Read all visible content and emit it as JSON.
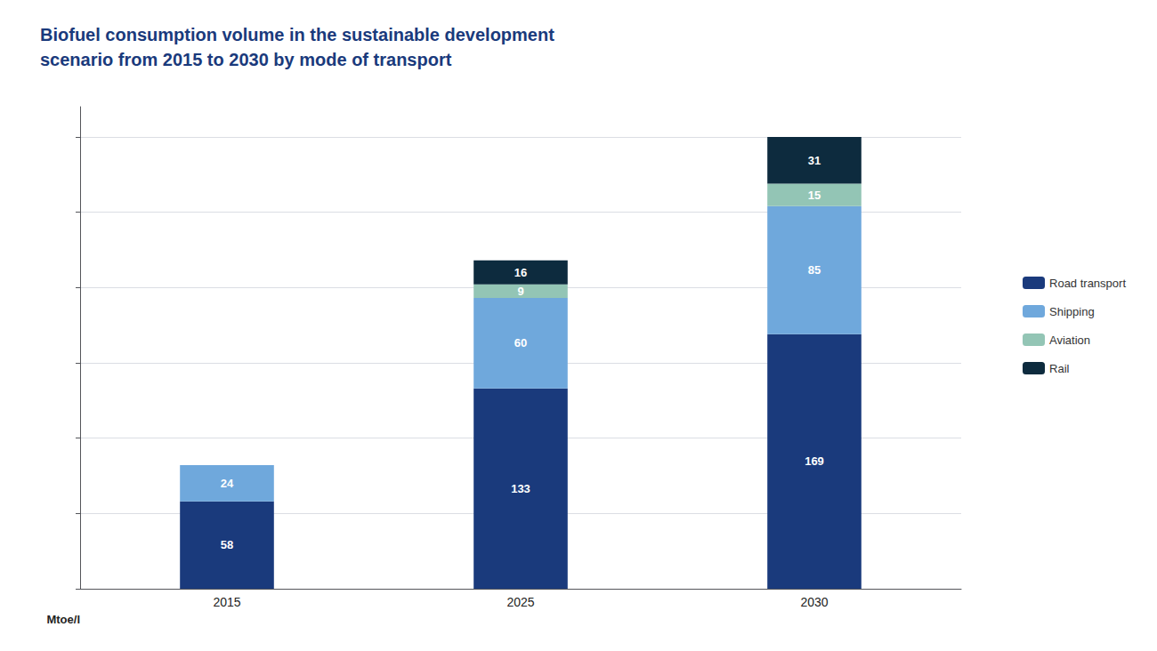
{
  "chart_data": {
    "type": "bar",
    "title": "Biofuel consumption volume in the sustainable development\nscenario from 2015 to 2030 by mode of transport",
    "categories": [
      "2015",
      "2025",
      "2030"
    ],
    "series": [
      {
        "name": "Road transport",
        "color": "#1a3a7c",
        "values": [
          58,
          133,
          169
        ]
      },
      {
        "name": "Shipping",
        "color": "#6fa8dc",
        "values": [
          24,
          60,
          85
        ]
      },
      {
        "name": "Aviation",
        "color": "#93c5b5",
        "values": [
          0,
          9,
          15
        ]
      },
      {
        "name": "Rail",
        "color": "#0d2b3e",
        "values": [
          0,
          16,
          31
        ]
      }
    ],
    "stacked": true,
    "ylabel": "Mtoe/l",
    "ylim": [
      0,
      320
    ],
    "yticks": [
      0,
      50,
      100,
      150,
      200,
      250,
      300
    ],
    "grid": true,
    "legend": "right",
    "data_labels": true,
    "tick_labels": "x"
  }
}
